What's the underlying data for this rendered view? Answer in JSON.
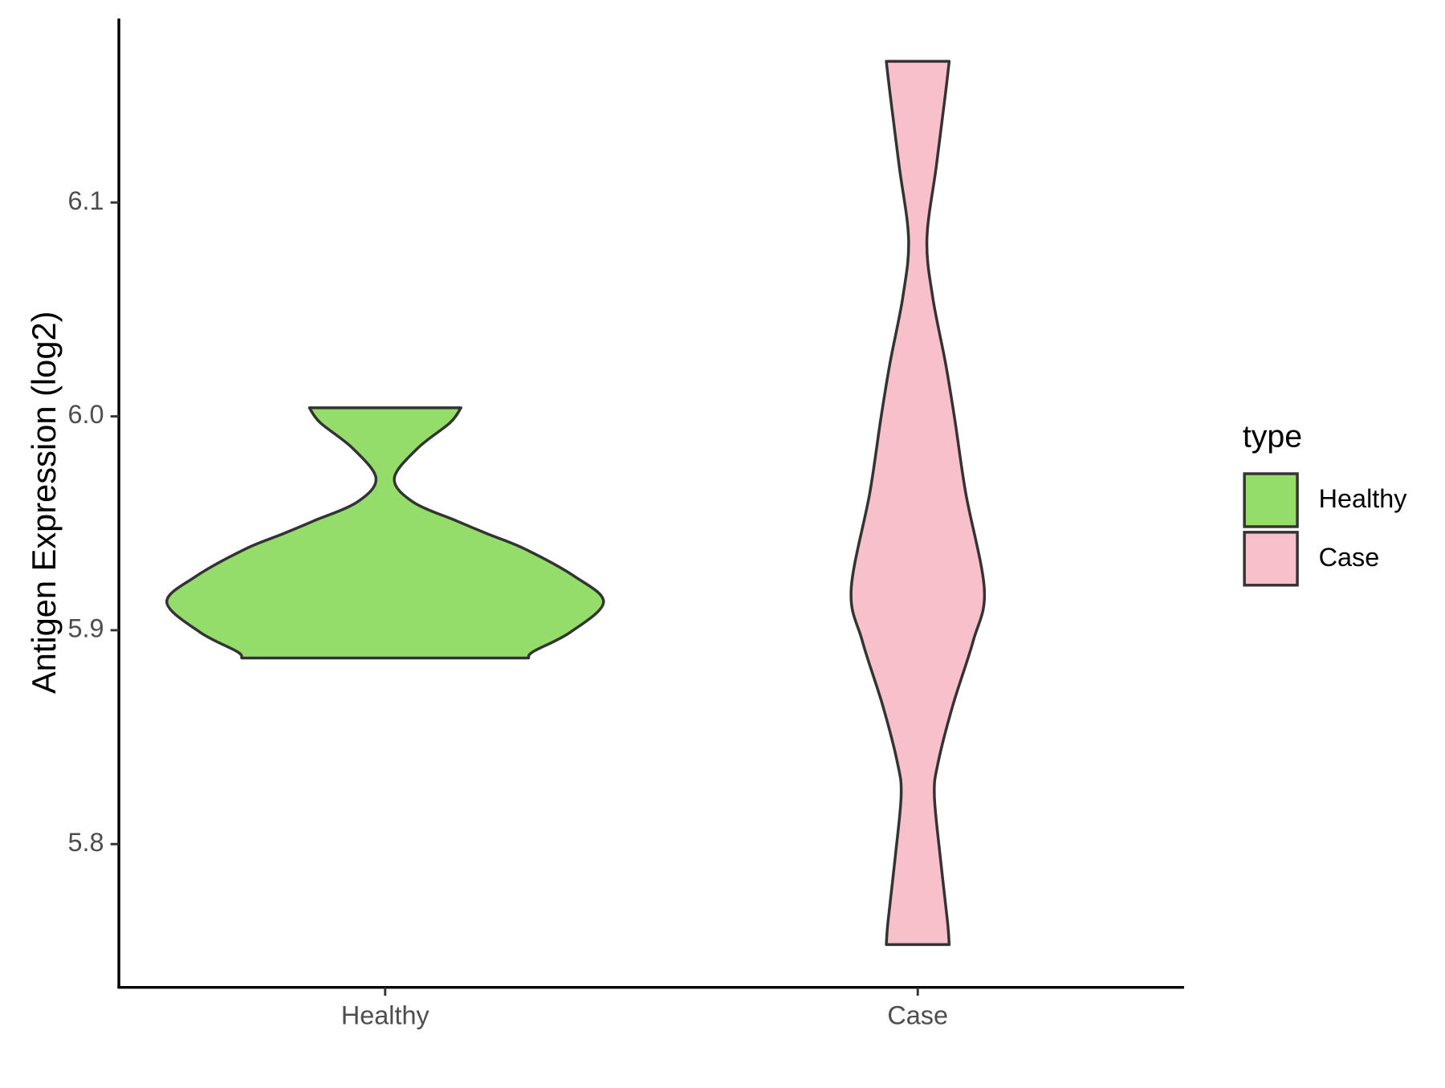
{
  "chart_data": {
    "type": "violin",
    "y_label": "Antigen Expression (log2)",
    "categories": [
      "Healthy",
      "Case"
    ],
    "ylim": [
      5.733,
      6.186
    ],
    "yticks": [
      5.8,
      5.9,
      {
        "value": 6.0,
        "label": "6.0"
      },
      6.1
    ],
    "legend_title": "type",
    "legend": "right",
    "series": [
      {
        "name": "Healthy",
        "color": "#94dd6a",
        "y": [
          6.004,
          5.997,
          5.985,
          5.971,
          5.96,
          5.951,
          5.945,
          5.938,
          5.925,
          5.913,
          5.899,
          5.89,
          5.887
        ],
        "width": [
          0.347,
          0.297,
          0.148,
          0.042,
          0.127,
          0.33,
          0.47,
          0.64,
          0.87,
          1.0,
          0.847,
          0.678,
          0.657
        ]
      },
      {
        "name": "Case",
        "color": "#f7c0cb",
        "y": [
          6.166,
          6.151,
          6.117,
          6.083,
          6.056,
          6.025,
          5.999,
          5.964,
          5.919,
          5.895,
          5.865,
          5.838,
          5.823,
          5.795,
          5.764,
          5.753
        ],
        "width": [
          0.144,
          0.127,
          0.085,
          0.042,
          0.068,
          0.127,
          0.169,
          0.22,
          0.305,
          0.254,
          0.161,
          0.093,
          0.076,
          0.102,
          0.136,
          0.144
        ]
      }
    ]
  }
}
